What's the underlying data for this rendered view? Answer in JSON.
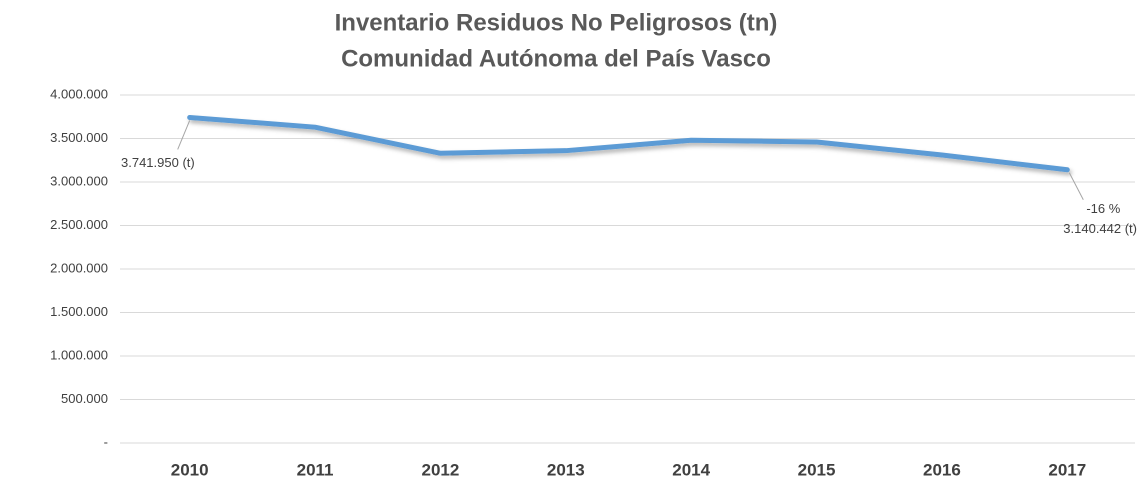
{
  "chart_data": {
    "type": "line",
    "title": "Inventario Residuos No Peligrosos  (tn)",
    "subtitle": "Comunidad Autónoma del País Vasco",
    "categories": [
      "2010",
      "2011",
      "2012",
      "2013",
      "2014",
      "2015",
      "2016",
      "2017"
    ],
    "values": [
      3741950,
      3630000,
      3330000,
      3360000,
      3480000,
      3460000,
      3310000,
      3140442
    ],
    "value_labels": [
      "3.741.950  (t)",
      null,
      null,
      null,
      null,
      null,
      null,
      "3.140.442  (t)"
    ],
    "annotations": [
      "-16 %"
    ],
    "color": "#5b9bd5",
    "ylim": [
      0,
      4000000
    ],
    "yticks": [
      {
        "value": 0,
        "label": "-"
      },
      {
        "value": 500000,
        "label": "500.000"
      },
      {
        "value": 1000000,
        "label": "1.000.000"
      },
      {
        "value": 1500000,
        "label": "1.500.000"
      },
      {
        "value": 2000000,
        "label": "2.000.000"
      },
      {
        "value": 2500000,
        "label": "2.500.000"
      },
      {
        "value": 3000000,
        "label": "3.000.000"
      },
      {
        "value": 3500000,
        "label": "3.500.000"
      },
      {
        "value": 4000000,
        "label": "4.000.000"
      }
    ],
    "grid": true
  }
}
